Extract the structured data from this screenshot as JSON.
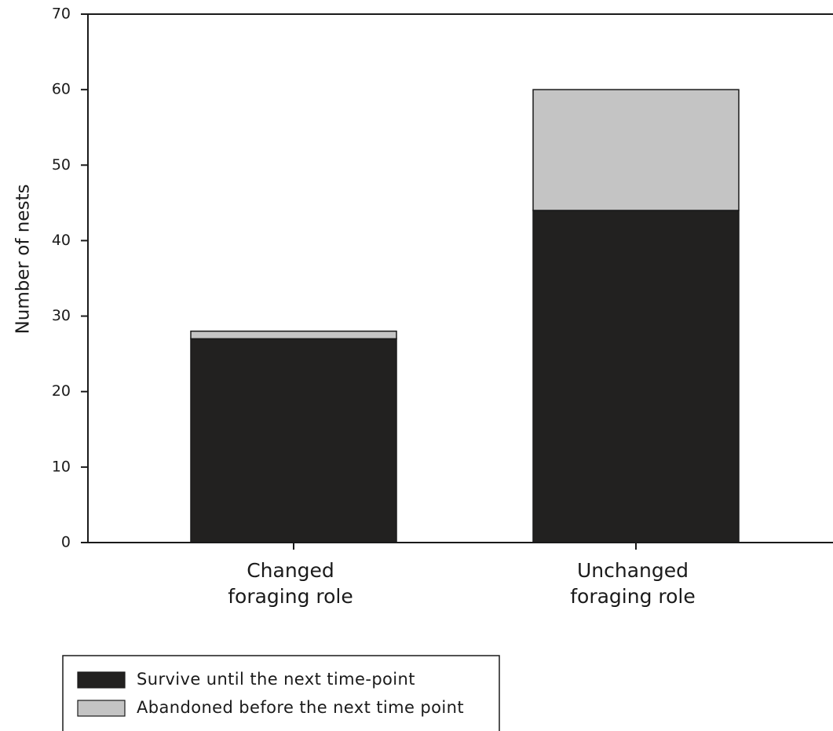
{
  "chart_data": {
    "type": "bar",
    "stacked": true,
    "title": "",
    "xlabel": "",
    "ylabel": "Number of nests",
    "ylim": [
      0,
      70
    ],
    "yticks": [
      0,
      10,
      20,
      30,
      40,
      50,
      60,
      70
    ],
    "grid": false,
    "legend_position": "bottom-left",
    "categories": [
      [
        "Changed",
        "foraging role"
      ],
      [
        "Unchanged",
        "foraging role"
      ]
    ],
    "series": [
      {
        "name": "Survive until the next time-point",
        "color": "#222120",
        "values": [
          27,
          44
        ]
      },
      {
        "name": "Abandoned before the next time point",
        "color": "#c4c4c4",
        "values": [
          1,
          16
        ]
      }
    ]
  }
}
